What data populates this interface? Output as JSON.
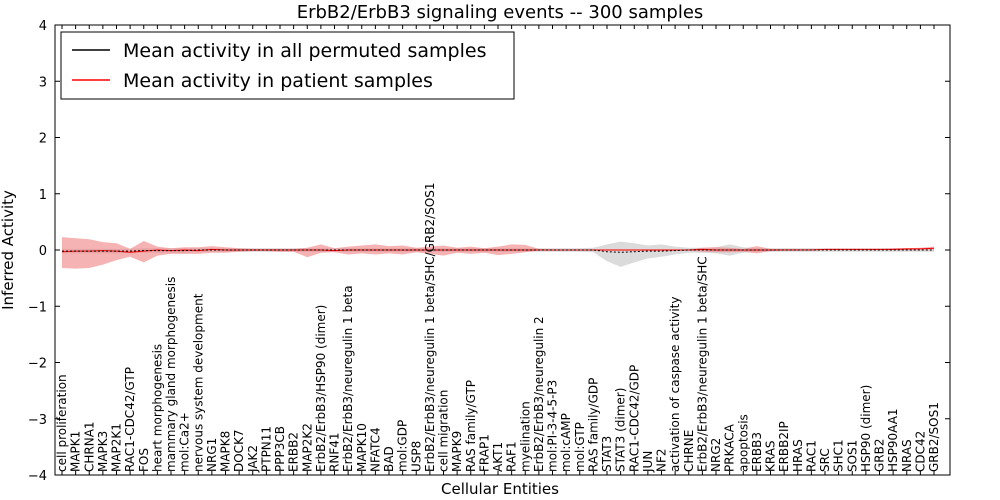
{
  "chart_data": {
    "type": "line",
    "title": "ErbB2/ErbB3 signaling events -- 300 samples",
    "xlabel": "Cellular Entities",
    "ylabel": "Inferred Activity",
    "ylim": [
      -4,
      4
    ],
    "yticks": [
      4,
      3,
      2,
      1,
      0,
      -1,
      -2,
      -3,
      -4
    ],
    "ytick_labels": [
      "4",
      "3",
      "2",
      "1",
      "0",
      "−1",
      "−2",
      "−3",
      "−4"
    ],
    "legend": {
      "placement": "top-left",
      "entries": [
        {
          "label": "Mean activity in all permuted samples",
          "color": "#000000"
        },
        {
          "label": "Mean activity in patient samples",
          "color": "#ff0000"
        }
      ]
    },
    "colors": {
      "permuted": "#000000",
      "patient": "#ff0000",
      "patient_band": "#f08080",
      "permuted_band": "#bdbdbd"
    },
    "categories": [
      "cell proliferation",
      "MAPK1",
      "CHRNA1",
      "MAPK3",
      "MAP2K1",
      "RAC1-CDC42/GTP",
      "FOS",
      "heart morphogenesis",
      "mammary gland morphogenesis",
      "mol:Ca2+",
      "nervous system development",
      "NRG1",
      "MAPK8",
      "DOCK7",
      "JAK2",
      "PTPN11",
      "PPP3CB",
      "ERBB2",
      "MAP2K2",
      "ErbB2/ErbB3/HSP90 (dimer)",
      "RNF41",
      "ErbB2/ErbB3/neuregulin 1 beta",
      "MAPK10",
      "NFATC4",
      "BAD",
      "mol:GDP",
      "USP8",
      "ErbB2/ErbB3/neuregulin 1 beta/SHC/GRB2/SOS1",
      "cell migration",
      "MAPK9",
      "RAS family/GTP",
      "FRAP1",
      "AKT1",
      "RAF1",
      "myelination",
      "ErbB2/ErbB3/neuregulin 2",
      "mol:PI-3-4-5-P3",
      "mol:cAMP",
      "mol:GTP",
      "RAS family/GDP",
      "STAT3",
      "STAT3 (dimer)",
      "RAC1-CDC42/GDP",
      "JUN",
      "NF2",
      "activation of caspase activity",
      "CHRNE",
      "ErbB2/ErbB3/neuregulin 1 beta/SHC",
      "NRG2",
      "PRKACA",
      "apoptosis",
      "ERBB3",
      "KRAS",
      "ERBB2IP",
      "HRAS",
      "RAC1",
      "SRC",
      "SHC1",
      "SOS1",
      "HSP90 (dimer)",
      "GRB2",
      "HSP90AA1",
      "NRAS",
      "CDC42",
      "GRB2/SOS1"
    ],
    "series": [
      {
        "name": "Mean activity in patient samples",
        "values": [
          -0.03,
          -0.02,
          -0.02,
          -0.01,
          -0.02,
          -0.04,
          -0.02,
          0.0,
          -0.01,
          0.0,
          -0.01,
          0.01,
          0.0,
          0.0,
          0.0,
          0.0,
          0.0,
          0.0,
          0.0,
          0.0,
          -0.01,
          0.0,
          0.0,
          0.0,
          0.0,
          0.0,
          0.0,
          0.0,
          0.0,
          0.0,
          0.0,
          0.0,
          0.0,
          0.0,
          0.0,
          0.0,
          0.0,
          0.0,
          0.0,
          0.0,
          0.0,
          0.0,
          0.0,
          0.0,
          0.0,
          0.0,
          0.0,
          0.01,
          0.0,
          0.0,
          0.0,
          0.0,
          0.0,
          0.0,
          0.0,
          0.0,
          0.01,
          0.01,
          0.01,
          0.01,
          0.01,
          0.01,
          0.02,
          0.02,
          0.03
        ],
        "band_upper": [
          0.23,
          0.21,
          0.19,
          0.14,
          0.12,
          0.02,
          0.16,
          0.06,
          0.03,
          0.05,
          0.05,
          0.07,
          0.05,
          0.03,
          0.02,
          0.02,
          0.02,
          0.02,
          0.04,
          0.1,
          0.03,
          0.06,
          0.08,
          0.1,
          0.07,
          0.08,
          0.04,
          0.06,
          0.08,
          0.04,
          0.06,
          0.03,
          0.06,
          0.1,
          0.09,
          0.02,
          0.01,
          0.01,
          0.01,
          0.01,
          0.01,
          0.01,
          0.01,
          0.01,
          0.01,
          0.01,
          0.01,
          0.04,
          0.05,
          0.04,
          0.02,
          0.07,
          0.02,
          0.02,
          0.02,
          0.02,
          0.02,
          0.02,
          0.02,
          0.02,
          0.02,
          0.03,
          0.03,
          0.04,
          0.06
        ],
        "band_lower": [
          -0.32,
          -0.33,
          -0.32,
          -0.26,
          -0.18,
          -0.12,
          -0.22,
          -0.1,
          -0.07,
          -0.07,
          -0.07,
          -0.05,
          -0.05,
          -0.03,
          -0.02,
          -0.02,
          -0.03,
          -0.03,
          -0.13,
          -0.05,
          -0.04,
          -0.08,
          -0.06,
          -0.08,
          -0.06,
          -0.08,
          -0.04,
          -0.07,
          -0.1,
          -0.05,
          -0.07,
          -0.05,
          -0.09,
          -0.07,
          -0.04,
          -0.01,
          -0.01,
          -0.01,
          -0.01,
          -0.01,
          -0.01,
          -0.01,
          -0.01,
          -0.01,
          -0.01,
          -0.01,
          -0.01,
          -0.03,
          -0.04,
          -0.04,
          -0.03,
          -0.06,
          -0.02,
          -0.01,
          -0.01,
          0.0,
          0.0,
          0.0,
          0.0,
          0.0,
          0.0,
          0.0,
          0.0,
          0.01,
          0.01
        ]
      },
      {
        "name": "Mean activity in all permuted samples",
        "values": [
          -0.02,
          -0.02,
          -0.02,
          -0.02,
          -0.02,
          -0.02,
          -0.01,
          -0.01,
          -0.01,
          -0.01,
          0.0,
          0.0,
          0.0,
          0.0,
          0.0,
          0.0,
          0.0,
          0.0,
          0.0,
          0.0,
          0.0,
          0.0,
          0.0,
          0.0,
          0.0,
          0.0,
          0.0,
          0.0,
          0.0,
          0.0,
          0.0,
          0.0,
          0.0,
          0.0,
          0.0,
          0.0,
          0.0,
          0.0,
          0.0,
          0.0,
          -0.03,
          -0.04,
          -0.03,
          -0.02,
          -0.02,
          -0.01,
          0.0,
          0.0,
          0.0,
          0.0,
          0.0,
          0.0,
          0.0,
          0.0,
          0.0,
          0.0,
          0.0,
          0.0,
          0.0,
          0.0,
          0.0,
          0.0,
          0.0,
          0.0,
          0.0
        ],
        "band_upper": [
          0.02,
          0.02,
          0.02,
          0.02,
          0.02,
          0.02,
          0.03,
          0.03,
          0.03,
          0.03,
          0.03,
          0.03,
          0.03,
          0.03,
          0.03,
          0.03,
          0.03,
          0.03,
          0.03,
          0.03,
          0.03,
          0.03,
          0.03,
          0.03,
          0.03,
          0.03,
          0.03,
          0.03,
          0.03,
          0.03,
          0.03,
          0.03,
          0.03,
          0.03,
          0.03,
          0.03,
          0.03,
          0.03,
          0.03,
          0.04,
          0.1,
          0.15,
          0.12,
          0.08,
          0.1,
          0.06,
          0.04,
          0.04,
          0.05,
          0.1,
          0.05,
          0.03,
          0.03,
          0.03,
          0.03,
          0.03,
          0.03,
          0.03,
          0.03,
          0.03,
          0.03,
          0.03,
          0.03,
          0.03,
          0.03
        ],
        "band_lower": [
          -0.06,
          -0.06,
          -0.06,
          -0.06,
          -0.06,
          -0.06,
          -0.05,
          -0.05,
          -0.05,
          -0.05,
          -0.03,
          -0.03,
          -0.03,
          -0.03,
          -0.03,
          -0.03,
          -0.03,
          -0.03,
          -0.03,
          -0.03,
          -0.03,
          -0.03,
          -0.03,
          -0.03,
          -0.03,
          -0.03,
          -0.03,
          -0.03,
          -0.03,
          -0.03,
          -0.03,
          -0.03,
          -0.03,
          -0.03,
          -0.03,
          -0.03,
          -0.03,
          -0.03,
          -0.03,
          -0.04,
          -0.2,
          -0.3,
          -0.22,
          -0.15,
          -0.12,
          -0.08,
          -0.05,
          -0.05,
          -0.06,
          -0.1,
          -0.05,
          -0.03,
          -0.03,
          -0.03,
          -0.03,
          -0.03,
          -0.03,
          -0.03,
          -0.03,
          -0.03,
          -0.03,
          -0.03,
          -0.03,
          -0.03,
          -0.03
        ]
      }
    ]
  }
}
